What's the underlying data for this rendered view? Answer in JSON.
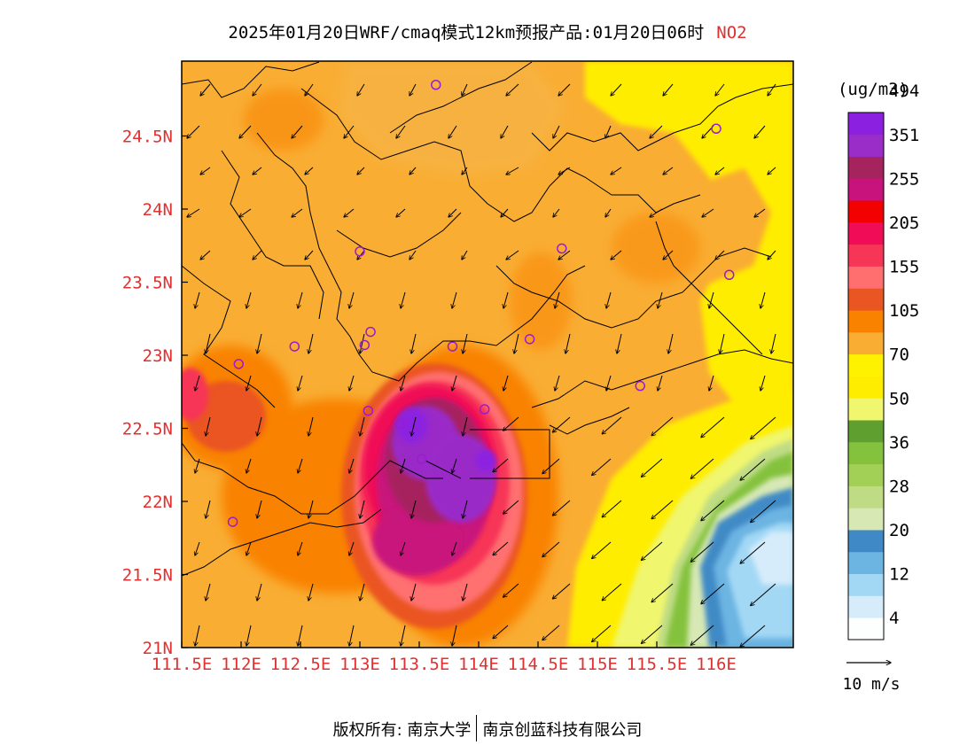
{
  "header": {
    "title": "2025年01月20日WRF/cmaq模式12km预报产品:01月20日06时",
    "species": "NO2"
  },
  "map": {
    "lon_range": [
      111.5,
      116.7
    ],
    "lat_range": [
      21.0,
      25.0
    ],
    "lon_ticks": [
      "111.5E",
      "112E",
      "112.5E",
      "113E",
      "113.5E",
      "114E",
      "114.5E",
      "115E",
      "115.5E",
      "116E"
    ],
    "lat_ticks": [
      "24.5N",
      "24N",
      "23.5N",
      "23N",
      "22.5N",
      "22N",
      "21.5N",
      "21N"
    ],
    "colors": {
      "base": "#f9ad33",
      "axis_text": "#e03030",
      "station": "#9a1bd1"
    },
    "stations": [
      {
        "lon": 113.64,
        "lat": 24.85
      },
      {
        "lon": 116.0,
        "lat": 24.55
      },
      {
        "lon": 113.0,
        "lat": 23.71
      },
      {
        "lon": 114.7,
        "lat": 23.73
      },
      {
        "lon": 116.11,
        "lat": 23.55
      },
      {
        "lon": 113.09,
        "lat": 23.16
      },
      {
        "lon": 113.04,
        "lat": 23.07
      },
      {
        "lon": 113.78,
        "lat": 23.06
      },
      {
        "lon": 114.43,
        "lat": 23.11
      },
      {
        "lon": 112.45,
        "lat": 23.06
      },
      {
        "lon": 111.98,
        "lat": 22.94
      },
      {
        "lon": 115.36,
        "lat": 22.79
      },
      {
        "lon": 113.07,
        "lat": 22.62
      },
      {
        "lon": 113.34,
        "lat": 22.53
      },
      {
        "lon": 114.05,
        "lat": 22.63
      },
      {
        "lon": 113.52,
        "lat": 22.29
      },
      {
        "lon": 111.93,
        "lat": 21.86
      }
    ]
  },
  "colorbar": {
    "title": "(ug/m3)",
    "colors": [
      "#fdfefe",
      "#d6ecfa",
      "#a3d8f5",
      "#6cb4e2",
      "#3f8ac6",
      "#d7e8b5",
      "#bfdc85",
      "#a2cf55",
      "#84c23e",
      "#5f9f2f",
      "#f0f66e",
      "#ffed00",
      "#fff200",
      "#f9ad33",
      "#f98200",
      "#ea5524",
      "#ff6f6f",
      "#f73657",
      "#f00c56",
      "#f30000",
      "#c8127c",
      "#a6245e",
      "#9a2cc8",
      "#8c20e0"
    ],
    "labels": [
      "4",
      "12",
      "20",
      "28",
      "36",
      "50",
      "70",
      "105",
      "155",
      "205",
      "255",
      "351",
      "494"
    ]
  },
  "wind_legend": {
    "label": "10 m/s"
  },
  "footer": {
    "copyright_left": "版权所有: 南京大学",
    "copyright_right": "南京创蓝科技有限公司"
  }
}
